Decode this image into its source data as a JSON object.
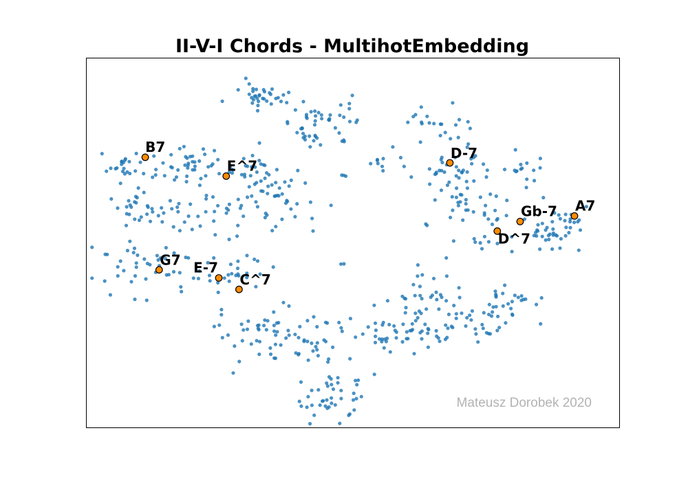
{
  "chart_data": {
    "type": "scatter",
    "title": "II-V-I Chords - MultihotEmbedding",
    "xlabel": "",
    "ylabel": "",
    "xlim": [
      0,
      100
    ],
    "ylim": [
      0,
      100
    ],
    "grid": false,
    "axis_ticks": false,
    "point_color": "#1f77b4",
    "highlight_color": "#ff8c00",
    "highlights": [
      {
        "label": "B7",
        "x": 11,
        "y": 73.2
      },
      {
        "label": "E^7",
        "x": 26.2,
        "y": 68.1
      },
      {
        "label": "D-7",
        "x": 68.2,
        "y": 71.7
      },
      {
        "label": "Gb-7",
        "x": 81.4,
        "y": 55.8
      },
      {
        "label": "A7",
        "x": 91.6,
        "y": 57.3
      },
      {
        "label": "D^7",
        "x": 77.1,
        "y": 53.2
      },
      {
        "label": "G7",
        "x": 13.6,
        "y": 42.7
      },
      {
        "label": "E-7",
        "x": 24.8,
        "y": 40.5
      },
      {
        "label": "C^7",
        "x": 28.6,
        "y": 37.4
      }
    ],
    "clusters": [
      {
        "cx": 32.5,
        "cy": 90.5,
        "sx": 4.5,
        "sy": 2.5,
        "n": 34
      },
      {
        "cx": 44.5,
        "cy": 82,
        "sx": 4.5,
        "sy": 4.2,
        "n": 48
      },
      {
        "cx": 19,
        "cy": 71,
        "sx": 5.5,
        "sy": 3.5,
        "n": 46
      },
      {
        "cx": 7,
        "cy": 71.5,
        "sx": 3,
        "sy": 2.8,
        "n": 18
      },
      {
        "cx": 34,
        "cy": 68,
        "sx": 5.5,
        "sy": 4,
        "n": 40
      },
      {
        "cx": 13.5,
        "cy": 58.5,
        "sx": 6.5,
        "sy": 4.5,
        "n": 42
      },
      {
        "cx": 31,
        "cy": 59.5,
        "sx": 7.5,
        "sy": 4,
        "n": 42
      },
      {
        "cx": 10.5,
        "cy": 43.5,
        "sx": 6.5,
        "sy": 5,
        "n": 38
      },
      {
        "cx": 26,
        "cy": 42.5,
        "sx": 6,
        "sy": 3.5,
        "n": 32
      },
      {
        "cx": 31,
        "cy": 26,
        "sx": 4.5,
        "sy": 4.5,
        "n": 42
      },
      {
        "cx": 43,
        "cy": 22.5,
        "sx": 5.5,
        "sy": 4.5,
        "n": 32
      },
      {
        "cx": 45.5,
        "cy": 8.5,
        "sx": 4.5,
        "sy": 4.5,
        "n": 42
      },
      {
        "cx": 56,
        "cy": 24.5,
        "sx": 4.5,
        "sy": 4.5,
        "n": 30
      },
      {
        "cx": 64.5,
        "cy": 36,
        "sx": 5,
        "sy": 4.5,
        "n": 32
      },
      {
        "cx": 74,
        "cy": 28.5,
        "sx": 6,
        "sy": 3.5,
        "n": 28
      },
      {
        "cx": 79,
        "cy": 34.5,
        "sx": 4.5,
        "sy": 3,
        "n": 20
      },
      {
        "cx": 63,
        "cy": 26.5,
        "sx": 5,
        "sy": 4,
        "n": 24
      },
      {
        "cx": 68.5,
        "cy": 69,
        "sx": 7,
        "sy": 5,
        "n": 50
      },
      {
        "cx": 65,
        "cy": 82.5,
        "sx": 4.5,
        "sy": 3,
        "n": 18
      },
      {
        "cx": 83,
        "cy": 69.5,
        "sx": 2.5,
        "sy": 3,
        "n": 14
      },
      {
        "cx": 74,
        "cy": 55.5,
        "sx": 5,
        "sy": 6,
        "n": 36
      },
      {
        "cx": 88.5,
        "cy": 55,
        "sx": 4,
        "sy": 3.5,
        "n": 30
      },
      {
        "cx": 87.5,
        "cy": 51,
        "sx": 3.5,
        "sy": 2,
        "n": 14
      },
      {
        "cx": 55,
        "cy": 71.5,
        "sx": 1.8,
        "sy": 1.4,
        "n": 7
      },
      {
        "cx": 48.5,
        "cy": 68.5,
        "sx": 0.8,
        "sy": 0.8,
        "n": 3
      },
      {
        "cx": 48,
        "cy": 44.5,
        "sx": 0.4,
        "sy": 0.4,
        "n": 2
      },
      {
        "cx": 64,
        "cy": 55,
        "sx": 0.5,
        "sy": 0.4,
        "n": 2
      }
    ]
  },
  "watermark": "Mateusz Dorobek 2020"
}
